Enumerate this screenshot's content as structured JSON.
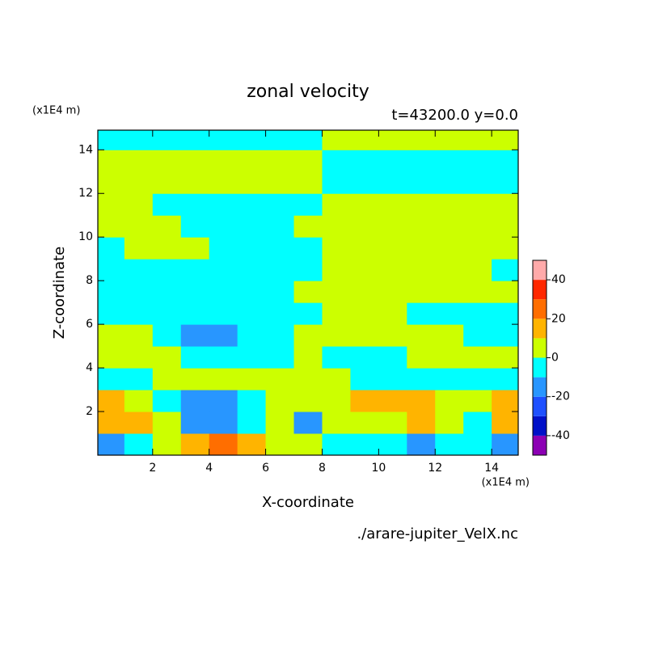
{
  "chart_data": {
    "type": "contour",
    "title": "zonal velocity",
    "subtitle": "t=43200.0 y=0.0",
    "x_label": "X-coordinate",
    "y_label": "Z-coordinate",
    "x_unit": "(x1E4 m)",
    "y_unit": "(x1E4 m)",
    "source": "./arare-jupiter_VelX.nc",
    "xlim": [
      0.06,
      14.94
    ],
    "ylim": [
      0,
      14.9
    ],
    "xticks": [
      2,
      4,
      6,
      8,
      10,
      12,
      14
    ],
    "yticks": [
      2,
      4,
      6,
      8,
      10,
      12,
      14
    ],
    "x": [
      0.5,
      1.5,
      2.5,
      3.5,
      4.5,
      5.5,
      6.5,
      7.5,
      8.5,
      9.5,
      10.5,
      11.5,
      12.5,
      13.5,
      14.5
    ],
    "y": [
      0.5,
      1.5,
      2.5,
      3.5,
      4.5,
      5.5,
      6.5,
      7.5,
      8.5,
      9.5,
      10.5,
      11.5,
      12.5,
      13.5,
      14.5
    ],
    "z": [
      [
        -15,
        -5,
        5,
        15,
        25,
        15,
        5,
        5,
        -5,
        -5,
        -5,
        -15,
        -5,
        -5,
        -15
      ],
      [
        15,
        15,
        5,
        -15,
        -15,
        -5,
        5,
        -15,
        5,
        5,
        5,
        15,
        5,
        -5,
        15
      ],
      [
        15,
        5,
        -5,
        -15,
        -15,
        -5,
        5,
        5,
        5,
        15,
        15,
        15,
        5,
        5,
        15
      ],
      [
        -5,
        -5,
        5,
        5,
        5,
        5,
        5,
        5,
        5,
        -5,
        -5,
        -5,
        -5,
        -5,
        -5
      ],
      [
        5,
        5,
        5,
        -5,
        -5,
        -5,
        -5,
        5,
        -5,
        -5,
        -5,
        5,
        5,
        5,
        5
      ],
      [
        5,
        5,
        -5,
        -15,
        -15,
        -5,
        -5,
        5,
        5,
        5,
        5,
        5,
        5,
        -5,
        -5
      ],
      [
        -5,
        -5,
        -5,
        -5,
        -5,
        -5,
        -5,
        -5,
        5,
        5,
        5,
        -5,
        -5,
        -5,
        -5
      ],
      [
        -5,
        -5,
        -5,
        -5,
        -5,
        -5,
        -5,
        5,
        5,
        5,
        5,
        5,
        5,
        5,
        5
      ],
      [
        -5,
        -5,
        -5,
        -5,
        -5,
        -5,
        -5,
        -5,
        5,
        5,
        5,
        5,
        5,
        5,
        -5
      ],
      [
        -5,
        5,
        5,
        5,
        -5,
        -5,
        -5,
        -5,
        5,
        5,
        5,
        5,
        5,
        5,
        5
      ],
      [
        5,
        5,
        5,
        -5,
        -5,
        -5,
        -5,
        5,
        5,
        5,
        5,
        5,
        5,
        5,
        5
      ],
      [
        5,
        5,
        -5,
        -5,
        -5,
        -5,
        -5,
        -5,
        5,
        5,
        5,
        5,
        5,
        5,
        5
      ],
      [
        5,
        5,
        5,
        5,
        5,
        5,
        5,
        5,
        -5,
        -5,
        -5,
        -5,
        -5,
        -5,
        -5
      ],
      [
        5,
        5,
        5,
        5,
        5,
        5,
        5,
        5,
        -5,
        -5,
        -5,
        -5,
        -5,
        -5,
        -5
      ],
      [
        -5,
        -5,
        -5,
        -5,
        -5,
        -5,
        -5,
        -5,
        5,
        5,
        5,
        5,
        5,
        5,
        5
      ]
    ],
    "levels": [
      -50,
      -40,
      -30,
      -20,
      -10,
      0,
      10,
      20,
      30,
      40,
      50
    ],
    "colors": [
      "#8c00b4",
      "#0010c8",
      "#1e50ff",
      "#2896ff",
      "#00ffff",
      "#ccff00",
      "#ffb400",
      "#ff6e00",
      "#ff2800",
      "#ffaaaa"
    ],
    "colorbar_ticks": [
      -40,
      -20,
      0,
      20,
      40
    ]
  }
}
